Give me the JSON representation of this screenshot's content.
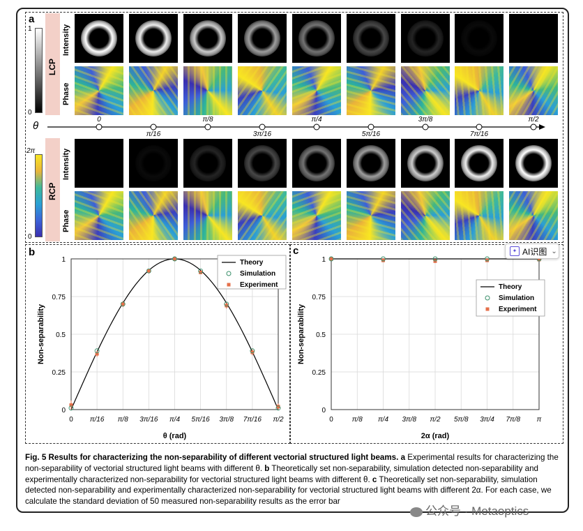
{
  "panel_a": {
    "label": "a",
    "lcp_label": "LCP",
    "rcp_label": "RCP",
    "intensity_label": "Intensity",
    "phase_label": "Phase",
    "lcp_colorbar": {
      "top": "1",
      "bottom": "0"
    },
    "rcp_colorbar": {
      "top": "2π",
      "bottom": "0"
    },
    "theta_symbol": "θ",
    "theta_ticks": [
      "0",
      "π/16",
      "π/8",
      "3π/16",
      "π/4",
      "5π/16",
      "3π/8",
      "7π/16",
      "π/2"
    ],
    "lcp_intensity_levels": [
      1.0,
      0.93,
      0.8,
      0.62,
      0.45,
      0.28,
      0.14,
      0.04,
      0.0
    ],
    "rcp_intensity_levels": [
      0.0,
      0.04,
      0.14,
      0.28,
      0.45,
      0.62,
      0.8,
      0.93,
      1.0
    ]
  },
  "chart_data": [
    {
      "label": "b",
      "type": "scatter",
      "xlabel": "θ (rad)",
      "ylabel": "Non-separability",
      "x_ticks": [
        "0",
        "π/16",
        "π/8",
        "3π/16",
        "π/4",
        "5π/16",
        "3π/8",
        "7π/16",
        "π/2"
      ],
      "y_ticks": [
        "0",
        "0.25",
        "0.5",
        "0.75",
        "1"
      ],
      "ylim": [
        0,
        1
      ],
      "legend": [
        "Theory",
        "Simulation",
        "Experiment"
      ],
      "legend_position": "top-right",
      "grid": true,
      "x": [
        0,
        1,
        2,
        3,
        4,
        5,
        6,
        7,
        8
      ],
      "series": [
        {
          "name": "Theory",
          "kind": "line",
          "values": [
            0,
            0.383,
            0.707,
            0.924,
            1,
            0.924,
            0.707,
            0.383,
            0
          ]
        },
        {
          "name": "Simulation",
          "kind": "circle",
          "values": [
            0.01,
            0.39,
            0.7,
            0.92,
            1.0,
            0.92,
            0.7,
            0.39,
            0.01
          ]
        },
        {
          "name": "Experiment",
          "kind": "square",
          "values": [
            0.03,
            0.37,
            0.7,
            0.92,
            1.0,
            0.91,
            0.69,
            0.38,
            0.02
          ],
          "error": [
            0.03,
            0.02,
            0.02,
            0.01,
            0.005,
            0.01,
            0.02,
            0.02,
            0.02
          ]
        }
      ],
      "colors": {
        "theory": "#000000",
        "simulation": "#3a8f6a",
        "experiment": "#e5704b"
      }
    },
    {
      "label": "c",
      "type": "scatter",
      "xlabel": "2α (rad)",
      "ylabel": "Non-separability",
      "x_ticks": [
        "0",
        "π/8",
        "π/4",
        "3π/8",
        "π/2",
        "5π/8",
        "3π/4",
        "7π/8",
        "π"
      ],
      "y_ticks": [
        "0",
        "0.25",
        "0.5",
        "0.75",
        "1"
      ],
      "ylim": [
        0,
        1
      ],
      "legend": [
        "Theory",
        "Simulation",
        "Experiment"
      ],
      "legend_position": "center-right",
      "grid": true,
      "x": [
        0,
        2,
        4,
        6,
        8
      ],
      "series": [
        {
          "name": "Theory",
          "kind": "line",
          "values": [
            1,
            1,
            1,
            1,
            1
          ]
        },
        {
          "name": "Simulation",
          "kind": "circle",
          "values": [
            1,
            1,
            1,
            1,
            1
          ]
        },
        {
          "name": "Experiment",
          "kind": "square",
          "values": [
            1.0,
            0.99,
            0.985,
            0.99,
            0.995
          ],
          "error": [
            0.005,
            0.012,
            0.012,
            0.01,
            0.008
          ]
        }
      ],
      "colors": {
        "theory": "#000000",
        "simulation": "#3a8f6a",
        "experiment": "#e5704b"
      }
    }
  ],
  "caption": {
    "title": "Fig. 5 Results for characterizing the non-separability of different vectorial structured light beams.",
    "a_label": "a",
    "a_text": " Experimental results for characterizing the non-separability of vectorial structured light beams with different θ.",
    "b_label": "b",
    "b_text": " Theoretically set non-separability, simulation detected non-separability and experimentally characterized non-separability for vectorial structured light beams with different θ.",
    "c_label": "c",
    "c_text": " Theoretically set non-separability, simulation detected non-separability and experimentally characterized non-separability for vectorial structured light beams with different 2α. For each case, we calculate the standard deviation of 50 measured non-separability results as the error bar"
  },
  "ai_button": {
    "label": "AI识图"
  },
  "watermark": "公众号 · Metaoptics"
}
